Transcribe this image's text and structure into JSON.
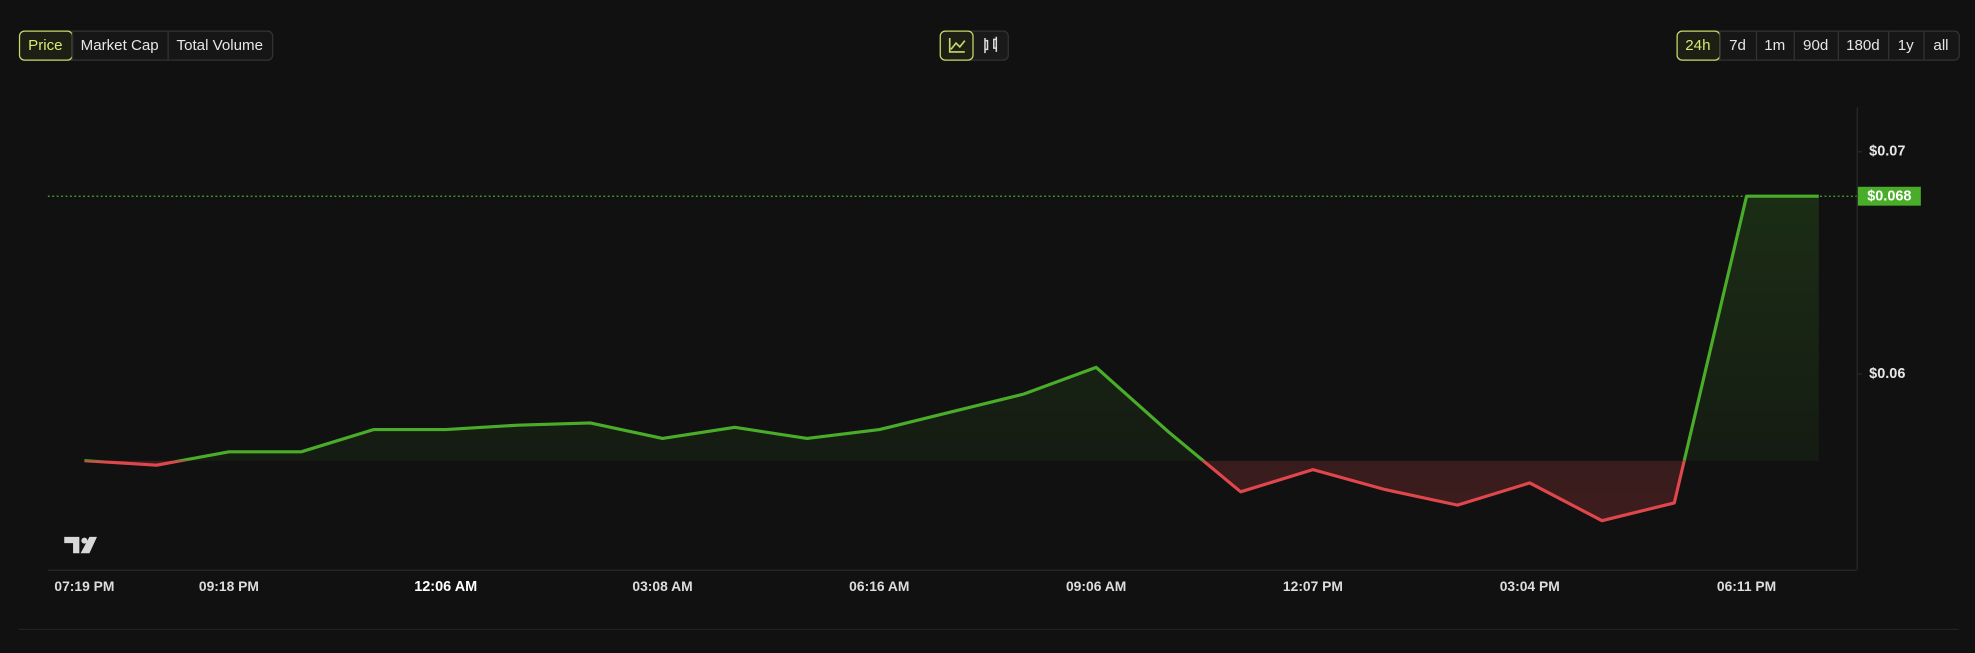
{
  "tabs": {
    "items": [
      "Price",
      "Market Cap",
      "Total Volume"
    ],
    "active": 0
  },
  "ranges": {
    "items": [
      "24h",
      "7d",
      "1m",
      "90d",
      "180d",
      "1y",
      "all"
    ],
    "active": 0
  },
  "chart_data": {
    "type": "line",
    "categories": [
      "07:19 PM",
      null,
      "09:18 PM",
      null,
      null,
      "12:06 AM",
      null,
      null,
      "03:08 AM",
      null,
      null,
      "06:16 AM",
      null,
      null,
      "09:06 AM",
      null,
      null,
      "12:07 PM",
      null,
      null,
      "03:04 PM",
      null,
      null,
      "06:11 PM",
      null
    ],
    "bold_category": 5,
    "values": [
      0.0561,
      0.0559,
      0.0565,
      0.0565,
      0.0575,
      0.0575,
      0.0577,
      0.0578,
      0.0571,
      0.0576,
      0.0571,
      0.0575,
      0.0583,
      0.0591,
      0.0603,
      0.0574,
      0.0547,
      0.0557,
      0.0548,
      0.0541,
      0.0551,
      0.0534,
      0.0542,
      0.068,
      0.068
    ],
    "last_price": {
      "value": 0.068,
      "label": "$0.068"
    },
    "up_color": "#4aad29",
    "down_color": "#e0474c",
    "ylim": [
      0.0512,
      0.072
    ],
    "yticks": [
      {
        "value": 0.06,
        "label": "$0.06"
      },
      {
        "value": 0.07,
        "label": "$0.07"
      }
    ]
  }
}
